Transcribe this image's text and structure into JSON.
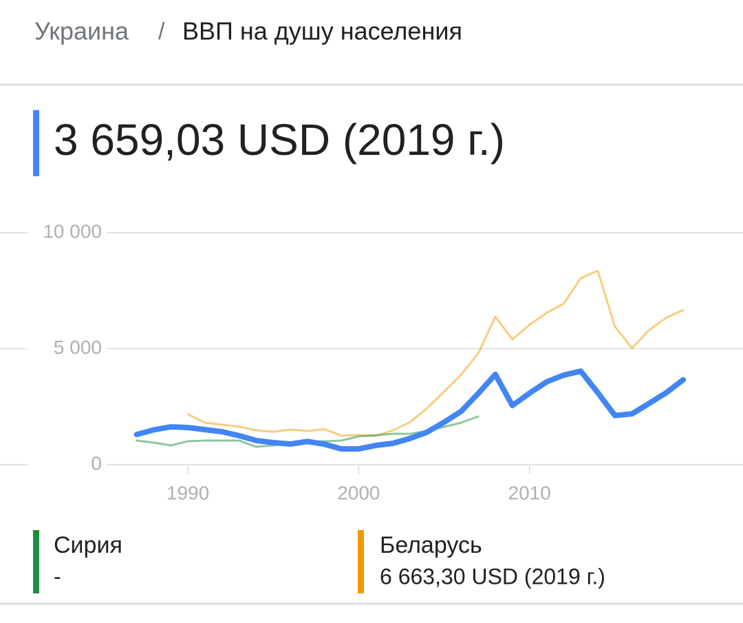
{
  "header": {
    "separator": "/",
    "title": "ВВП на душу населения"
  },
  "chart_data": {
    "type": "line",
    "x": [
      1987,
      1988,
      1989,
      1990,
      1991,
      1992,
      1993,
      1994,
      1995,
      1996,
      1997,
      1998,
      1999,
      2000,
      2001,
      2002,
      2003,
      2004,
      2005,
      2006,
      2007,
      2008,
      2009,
      2010,
      2011,
      2012,
      2013,
      2014,
      2015,
      2016,
      2017,
      2018,
      2019
    ],
    "series": [
      {
        "name": "Украина",
        "color": "#4285f4",
        "summary": "3 659,03 USD (2019 г.)",
        "values": [
          1300,
          1500,
          1630,
          1600,
          1510,
          1420,
          1250,
          1040,
          950,
          890,
          1000,
          880,
          680,
          680,
          830,
          920,
          1130,
          1400,
          1830,
          2300,
          3070,
          3890,
          2550,
          3080,
          3570,
          3860,
          4030,
          3100,
          2120,
          2190,
          2640,
          3100,
          3659.03
        ]
      },
      {
        "name": "Сирия",
        "color": "#1e8e3e",
        "summary": "-",
        "values": [
          1040,
          950,
          830,
          1010,
          1040,
          1040,
          1040,
          770,
          830,
          950,
          1010,
          1010,
          1040,
          1220,
          1270,
          1330,
          1330,
          1450,
          1630,
          1810,
          2080,
          null,
          null,
          null,
          null,
          null,
          null,
          null,
          null,
          null,
          null,
          null,
          null
        ]
      },
      {
        "name": "Беларусь",
        "color": "#f29900",
        "summary": "6 663,30 USD (2019 г.)",
        "values": [
          null,
          null,
          null,
          2170,
          1810,
          1720,
          1640,
          1480,
          1420,
          1510,
          1450,
          1530,
          1250,
          1280,
          1240,
          1480,
          1830,
          2430,
          3150,
          3880,
          4800,
          6380,
          5400,
          6030,
          6540,
          6940,
          8040,
          8360,
          5950,
          5020,
          5800,
          6330,
          6663.3
        ]
      }
    ],
    "xlim": [
      1979,
      2022.5
    ],
    "xticks": [
      1990,
      2000,
      2010
    ],
    "ylim": [
      0,
      10000
    ],
    "yticks": [
      0,
      {
        "value": 5000,
        "label": "5 000"
      },
      {
        "value": 10000,
        "label": "10 000"
      }
    ],
    "grid": true
  }
}
